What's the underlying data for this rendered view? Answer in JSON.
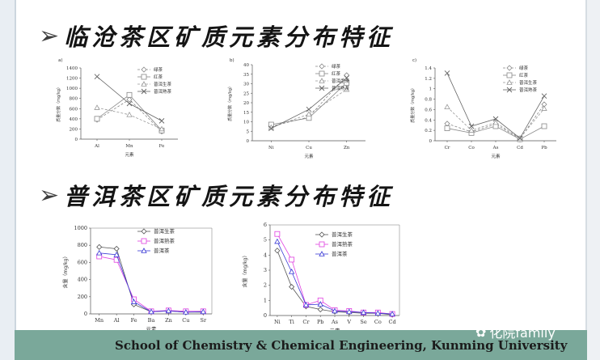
{
  "slide": {
    "heading1": "临沧茶区矿质元素分布特征",
    "heading2": "普洱茶区矿质元素分布特征",
    "footer": "School of Chemistry & Chemical Engineering, Kunming University",
    "watermark": "化院family",
    "arrow": "➢",
    "colors": {
      "footer_bg": "#7aa89a"
    }
  },
  "chart_data": [
    {
      "type": "line",
      "panel_label": "a)",
      "categories": [
        "Al",
        "Mn",
        "Fe"
      ],
      "xlabel": "元素",
      "ylabel": "质量分数（mg/kg）",
      "ylim": [
        0,
        1400
      ],
      "yticks": [
        "0",
        "200",
        "400",
        "600",
        "800",
        "1000",
        "1200",
        "1400"
      ],
      "legend_position": "top-right",
      "series": [
        {
          "name": "绿茶",
          "values": [
            380,
            780,
            150
          ],
          "marker": "diamond",
          "dash": "dash",
          "color": "#888888"
        },
        {
          "name": "红茶",
          "values": [
            400,
            870,
            170
          ],
          "marker": "square",
          "dash": "solid",
          "color": "#888888"
        },
        {
          "name": "普洱生茶",
          "values": [
            620,
            480,
            200
          ],
          "marker": "triangle",
          "dash": "dash",
          "color": "#999999"
        },
        {
          "name": "普洱熟茶",
          "values": [
            1230,
            700,
            360
          ],
          "marker": "x",
          "dash": "solid",
          "color": "#666666"
        }
      ]
    },
    {
      "type": "line",
      "panel_label": "b)",
      "categories": [
        "Ni",
        "Cu",
        "Zn"
      ],
      "xlabel": "元素",
      "ylabel": "质量分数（mg/kg）",
      "ylim": [
        0,
        40
      ],
      "yticks": [
        "0",
        "5",
        "10",
        "15",
        "20",
        "25",
        "30",
        "35",
        "40"
      ],
      "legend_position": "top-right",
      "series": [
        {
          "name": "绿茶",
          "values": [
            7.5,
            12.5,
            34.5
          ],
          "marker": "diamond",
          "dash": "dash",
          "color": "#888888"
        },
        {
          "name": "红茶",
          "values": [
            8.5,
            12.0,
            30.5
          ],
          "marker": "square",
          "dash": "solid",
          "color": "#888888"
        },
        {
          "name": "普洱生茶",
          "values": [
            7.0,
            14.0,
            27.0
          ],
          "marker": "triangle",
          "dash": "dash",
          "color": "#999999"
        },
        {
          "name": "普洱熟茶",
          "values": [
            6.5,
            16.5,
            33.0
          ],
          "marker": "x",
          "dash": "solid",
          "color": "#666666"
        }
      ]
    },
    {
      "type": "line",
      "panel_label": "c)",
      "categories": [
        "Cr",
        "Co",
        "As",
        "Cd",
        "Pb"
      ],
      "xlabel": "元素",
      "ylabel": "质量分数（mg/kg）",
      "ylim": [
        0,
        1.4
      ],
      "yticks": [
        "0",
        "0.2",
        "0.4",
        "0.6",
        "0.8",
        "1",
        "1.2",
        "1.4"
      ],
      "legend_position": "top-right",
      "series": [
        {
          "name": "绿茶",
          "values": [
            0.33,
            0.17,
            0.32,
            0.04,
            0.7
          ],
          "marker": "diamond",
          "dash": "dash",
          "color": "#888888"
        },
        {
          "name": "红茶",
          "values": [
            0.24,
            0.15,
            0.28,
            0.03,
            0.28
          ],
          "marker": "square",
          "dash": "solid",
          "color": "#888888"
        },
        {
          "name": "普洱生茶",
          "values": [
            0.65,
            0.2,
            0.35,
            0.05,
            0.62
          ],
          "marker": "triangle",
          "dash": "dash",
          "color": "#999999"
        },
        {
          "name": "普洱熟茶",
          "values": [
            1.3,
            0.28,
            0.42,
            0.05,
            0.86
          ],
          "marker": "x",
          "dash": "solid",
          "color": "#666666"
        }
      ]
    },
    {
      "type": "line",
      "categories": [
        "Mn",
        "Al",
        "Fe",
        "Ba",
        "Zn",
        "Cu",
        "Sr"
      ],
      "xlabel": "元素",
      "ylabel": "含量（mg/kg）",
      "ylim": [
        0,
        1000
      ],
      "yticks": [
        "0",
        "200",
        "400",
        "600",
        "800",
        "1000"
      ],
      "legend_position": "top-right",
      "series": [
        {
          "name": "普洱生茶",
          "values": [
            780,
            760,
            110,
            25,
            35,
            20,
            20
          ],
          "marker": "diamond",
          "dash": "solid",
          "color": "#555555"
        },
        {
          "name": "普洱熟茶",
          "values": [
            670,
            630,
            170,
            30,
            40,
            30,
            30
          ],
          "marker": "square",
          "dash": "solid",
          "color": "#e040e0"
        },
        {
          "name": "普洱茶",
          "values": [
            710,
            690,
            140,
            25,
            35,
            20,
            25
          ],
          "marker": "triangle",
          "dash": "solid",
          "color": "#3a3ad6"
        }
      ]
    },
    {
      "type": "line",
      "categories": [
        "Ni",
        "Ti",
        "Cr",
        "Pb",
        "As",
        "V",
        "Se",
        "Co",
        "Cd"
      ],
      "xlabel": "元素",
      "ylabel": "含量（mg/kg）",
      "ylim": [
        0,
        6
      ],
      "yticks": [
        "0",
        "1",
        "2",
        "3",
        "4",
        "5",
        "6"
      ],
      "legend_position": "top-right",
      "series": [
        {
          "name": "普洱生茶",
          "values": [
            4.3,
            1.9,
            0.6,
            0.4,
            0.25,
            0.2,
            0.15,
            0.15,
            0.05
          ],
          "marker": "diamond",
          "dash": "solid",
          "color": "#555555"
        },
        {
          "name": "普洱熟茶",
          "values": [
            5.4,
            3.7,
            0.7,
            1.0,
            0.35,
            0.3,
            0.2,
            0.2,
            0.1
          ],
          "marker": "square",
          "dash": "solid",
          "color": "#e040e0"
        },
        {
          "name": "普洱茶",
          "values": [
            4.9,
            2.9,
            0.7,
            0.75,
            0.3,
            0.25,
            0.2,
            0.15,
            0.1
          ],
          "marker": "triangle",
          "dash": "solid",
          "color": "#3a3ad6"
        }
      ]
    }
  ]
}
